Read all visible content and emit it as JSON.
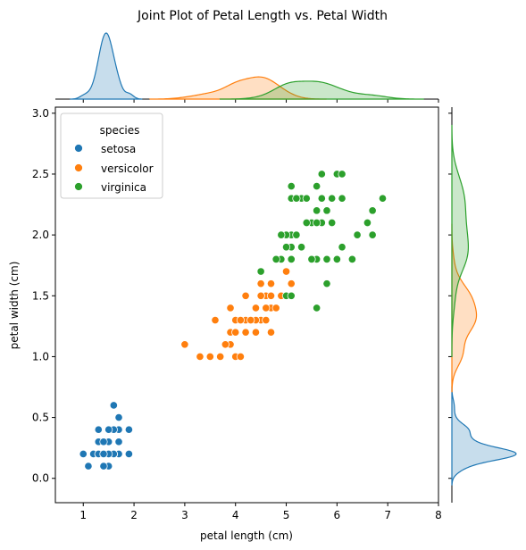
{
  "chart_data": {
    "type": "scatter",
    "title": "Joint Plot of Petal Length vs. Petal Width",
    "xlabel": "petal length (cm)",
    "ylabel": "petal width (cm)",
    "xlim": [
      0.45,
      8
    ],
    "ylim": [
      -0.2,
      3.05
    ],
    "xticks": [
      1,
      2,
      3,
      4,
      5,
      6,
      7,
      8
    ],
    "xtick_labels": [
      "1",
      "2",
      "3",
      "4",
      "5",
      "6",
      "7",
      "8"
    ],
    "yticks": [
      0.0,
      0.5,
      1.0,
      1.5,
      2.0,
      2.5,
      3.0
    ],
    "ytick_labels": [
      "0.0",
      "0.5",
      "1.0",
      "1.5",
      "2.0",
      "2.5",
      "3.0"
    ],
    "grid": false,
    "legend": {
      "title": "species",
      "placement": "upper-left"
    },
    "marginals": {
      "top": "kde of petal length per species",
      "right": "kde of petal width per species"
    },
    "series": [
      {
        "name": "setosa",
        "color": "#1f77b4",
        "points": [
          [
            1.4,
            0.2
          ],
          [
            1.4,
            0.2
          ],
          [
            1.3,
            0.2
          ],
          [
            1.5,
            0.2
          ],
          [
            1.4,
            0.2
          ],
          [
            1.7,
            0.4
          ],
          [
            1.4,
            0.3
          ],
          [
            1.5,
            0.2
          ],
          [
            1.4,
            0.2
          ],
          [
            1.5,
            0.1
          ],
          [
            1.5,
            0.2
          ],
          [
            1.6,
            0.2
          ],
          [
            1.4,
            0.1
          ],
          [
            1.1,
            0.1
          ],
          [
            1.2,
            0.2
          ],
          [
            1.5,
            0.4
          ],
          [
            1.3,
            0.4
          ],
          [
            1.4,
            0.3
          ],
          [
            1.7,
            0.3
          ],
          [
            1.5,
            0.3
          ],
          [
            1.7,
            0.2
          ],
          [
            1.5,
            0.4
          ],
          [
            1.0,
            0.2
          ],
          [
            1.7,
            0.5
          ],
          [
            1.9,
            0.2
          ],
          [
            1.6,
            0.2
          ],
          [
            1.6,
            0.4
          ],
          [
            1.5,
            0.2
          ],
          [
            1.4,
            0.2
          ],
          [
            1.6,
            0.2
          ],
          [
            1.6,
            0.2
          ],
          [
            1.5,
            0.4
          ],
          [
            1.5,
            0.1
          ],
          [
            1.4,
            0.2
          ],
          [
            1.5,
            0.2
          ],
          [
            1.2,
            0.2
          ],
          [
            1.3,
            0.2
          ],
          [
            1.4,
            0.1
          ],
          [
            1.3,
            0.2
          ],
          [
            1.5,
            0.2
          ],
          [
            1.3,
            0.3
          ],
          [
            1.3,
            0.3
          ],
          [
            1.3,
            0.2
          ],
          [
            1.6,
            0.6
          ],
          [
            1.9,
            0.4
          ],
          [
            1.4,
            0.3
          ],
          [
            1.6,
            0.2
          ],
          [
            1.4,
            0.2
          ],
          [
            1.5,
            0.2
          ],
          [
            1.4,
            0.2
          ]
        ]
      },
      {
        "name": "versicolor",
        "color": "#ff7f0e",
        "points": [
          [
            4.7,
            1.4
          ],
          [
            4.5,
            1.5
          ],
          [
            4.9,
            1.5
          ],
          [
            4.0,
            1.3
          ],
          [
            4.6,
            1.5
          ],
          [
            4.5,
            1.3
          ],
          [
            4.7,
            1.6
          ],
          [
            3.3,
            1.0
          ],
          [
            4.6,
            1.3
          ],
          [
            3.9,
            1.4
          ],
          [
            3.5,
            1.0
          ],
          [
            4.2,
            1.5
          ],
          [
            4.0,
            1.0
          ],
          [
            4.7,
            1.4
          ],
          [
            3.6,
            1.3
          ],
          [
            4.4,
            1.4
          ],
          [
            4.5,
            1.5
          ],
          [
            4.1,
            1.0
          ],
          [
            4.5,
            1.5
          ],
          [
            3.9,
            1.1
          ],
          [
            4.8,
            1.8
          ],
          [
            4.0,
            1.3
          ],
          [
            4.9,
            1.5
          ],
          [
            4.7,
            1.2
          ],
          [
            4.3,
            1.3
          ],
          [
            4.4,
            1.4
          ],
          [
            4.8,
            1.4
          ],
          [
            5.0,
            1.7
          ],
          [
            4.5,
            1.5
          ],
          [
            3.5,
            1.0
          ],
          [
            3.8,
            1.1
          ],
          [
            3.7,
            1.0
          ],
          [
            3.9,
            1.2
          ],
          [
            5.1,
            1.6
          ],
          [
            4.5,
            1.5
          ],
          [
            4.5,
            1.6
          ],
          [
            4.7,
            1.5
          ],
          [
            4.4,
            1.3
          ],
          [
            4.1,
            1.3
          ],
          [
            4.0,
            1.3
          ],
          [
            4.4,
            1.2
          ],
          [
            4.6,
            1.4
          ],
          [
            4.0,
            1.2
          ],
          [
            3.3,
            1.0
          ],
          [
            4.2,
            1.3
          ],
          [
            4.2,
            1.2
          ],
          [
            4.2,
            1.3
          ],
          [
            4.3,
            1.3
          ],
          [
            3.0,
            1.1
          ],
          [
            4.1,
            1.3
          ]
        ]
      },
      {
        "name": "virginica",
        "color": "#2ca02c",
        "points": [
          [
            6.0,
            2.5
          ],
          [
            5.1,
            1.9
          ],
          [
            5.9,
            2.1
          ],
          [
            5.6,
            1.8
          ],
          [
            5.8,
            2.2
          ],
          [
            6.6,
            2.1
          ],
          [
            4.5,
            1.7
          ],
          [
            6.3,
            1.8
          ],
          [
            5.8,
            1.8
          ],
          [
            6.1,
            2.5
          ],
          [
            5.1,
            2.0
          ],
          [
            5.3,
            1.9
          ],
          [
            5.5,
            2.1
          ],
          [
            5.0,
            2.0
          ],
          [
            5.1,
            2.4
          ],
          [
            5.3,
            2.3
          ],
          [
            5.5,
            1.8
          ],
          [
            6.7,
            2.2
          ],
          [
            6.9,
            2.3
          ],
          [
            5.0,
            1.5
          ],
          [
            5.7,
            2.3
          ],
          [
            4.9,
            2.0
          ],
          [
            6.7,
            2.0
          ],
          [
            4.9,
            1.8
          ],
          [
            5.7,
            2.1
          ],
          [
            6.0,
            1.8
          ],
          [
            4.8,
            1.8
          ],
          [
            4.9,
            1.8
          ],
          [
            5.6,
            2.1
          ],
          [
            5.8,
            1.6
          ],
          [
            6.1,
            1.9
          ],
          [
            6.4,
            2.0
          ],
          [
            5.6,
            2.2
          ],
          [
            5.1,
            1.5
          ],
          [
            5.6,
            1.4
          ],
          [
            6.1,
            2.3
          ],
          [
            5.6,
            2.4
          ],
          [
            5.5,
            1.8
          ],
          [
            4.8,
            1.8
          ],
          [
            5.4,
            2.1
          ],
          [
            5.6,
            2.4
          ],
          [
            5.1,
            2.3
          ],
          [
            5.1,
            1.9
          ],
          [
            5.9,
            2.3
          ],
          [
            5.7,
            2.5
          ],
          [
            5.2,
            2.3
          ],
          [
            5.0,
            1.9
          ],
          [
            5.2,
            2.0
          ],
          [
            5.4,
            2.3
          ],
          [
            5.1,
            1.8
          ]
        ]
      }
    ]
  }
}
